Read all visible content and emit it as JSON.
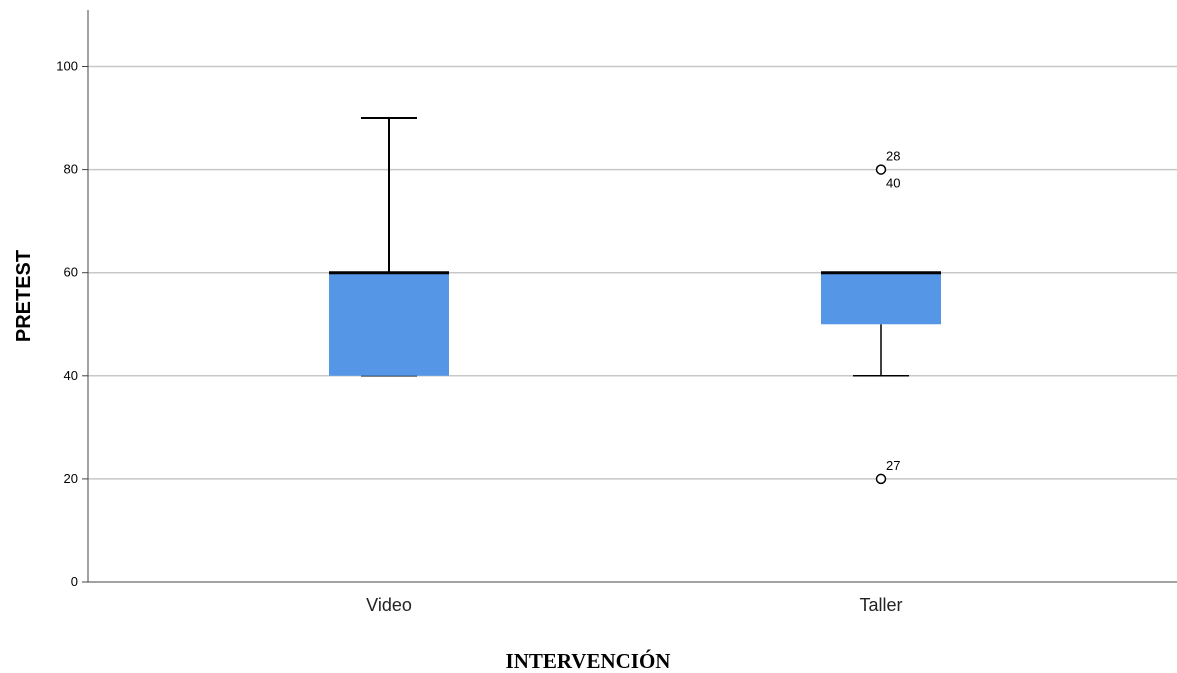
{
  "chart_data": {
    "type": "box",
    "ylabel": "PRETEST",
    "xlabel": "INTERVENCIÓN",
    "ylim": [
      0,
      110
    ],
    "yticks": [
      0,
      20,
      40,
      60,
      80,
      100
    ],
    "grid": true,
    "box_color": "#5596e6",
    "groups": [
      {
        "name": "Video",
        "min": 40,
        "q1": 40,
        "median": 60,
        "q3": 60,
        "max": 90,
        "outliers": []
      },
      {
        "name": "Taller",
        "min": 40,
        "q1": 50,
        "median": 60,
        "q3": 60,
        "max": 60,
        "outliers": [
          {
            "value": 80,
            "labels": [
              "28",
              "40"
            ]
          },
          {
            "value": 20,
            "labels": [
              "27"
            ]
          }
        ]
      }
    ]
  }
}
